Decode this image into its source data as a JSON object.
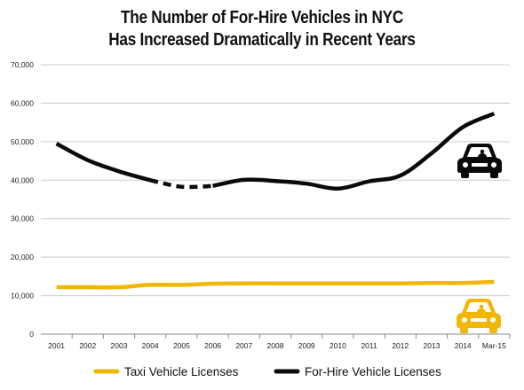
{
  "chart_data": {
    "type": "line",
    "title_line1": "The Number of For-Hire Vehicles in NYC",
    "title_line2": "Has Increased Dramatically in Recent Years",
    "xlabel": "",
    "ylabel": "",
    "ylim": [
      0,
      70000
    ],
    "yticks": [
      0,
      10000,
      20000,
      30000,
      40000,
      50000,
      60000,
      70000
    ],
    "ytick_labels": [
      "0",
      "10,000",
      "20,000",
      "30,000",
      "40,000",
      "50,000",
      "60,000",
      "70,000"
    ],
    "categories": [
      "2001",
      "2002",
      "2003",
      "2004",
      "2005",
      "2006",
      "2007",
      "2008",
      "2009",
      "2010",
      "2011",
      "2012",
      "2013",
      "2014",
      "Mar-15"
    ],
    "grid": "horizontal",
    "legend_position": "bottom",
    "series": [
      {
        "name": "Taxi Vehicle Licenses",
        "color": "#f2b705",
        "icon": "taxi-car-icon",
        "values": [
          12200,
          12200,
          12200,
          12800,
          12800,
          13100,
          13200,
          13200,
          13200,
          13200,
          13200,
          13200,
          13300,
          13300,
          13600
        ]
      },
      {
        "name": "For-Hire Vehicle Licenses",
        "color": "#0a0a0a",
        "icon": "for-hire-car-icon",
        "dashed_segment": [
          "2004",
          "2006"
        ],
        "values": [
          49500,
          45200,
          42300,
          40000,
          38300,
          38500,
          40100,
          39800,
          39100,
          37800,
          39700,
          41200,
          47000,
          53800,
          57300
        ]
      }
    ]
  }
}
